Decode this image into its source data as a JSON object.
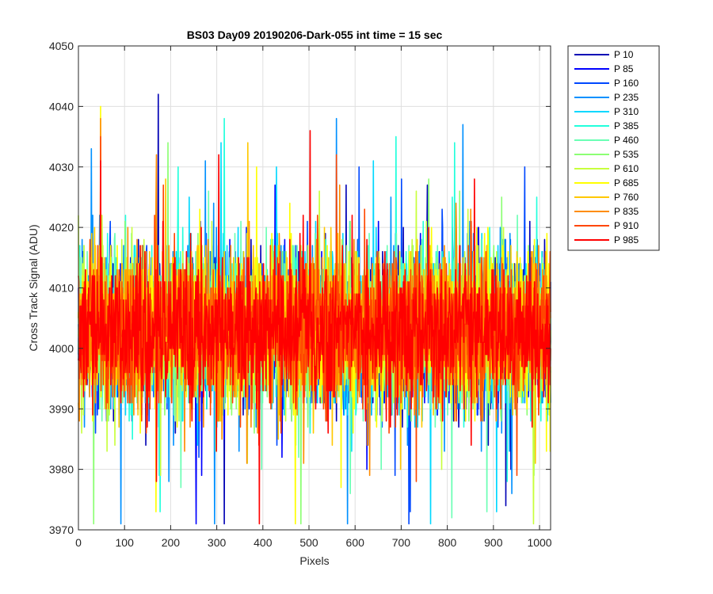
{
  "chart_data": {
    "type": "line",
    "title": "BS03 Day09 20190206-Dark-055 int time = 15 sec",
    "xlabel": "Pixels",
    "ylabel": "Cross Track Signal (ADU)",
    "xlim": [
      0,
      1024
    ],
    "ylim": [
      3970,
      4050
    ],
    "xticks": [
      "0",
      "100",
      "200",
      "300",
      "400",
      "500",
      "600",
      "700",
      "800",
      "900",
      "1000"
    ],
    "yticks": [
      "3970",
      "3980",
      "3990",
      "4000",
      "4010",
      "4020",
      "4030",
      "4040",
      "4050"
    ],
    "grid": true,
    "legend_position": "outside-right",
    "samples_per_series": 1024,
    "series": [
      {
        "name": "P 10",
        "color": "#0000b5",
        "mean": 4003,
        "spread": 6
      },
      {
        "name": "P 85",
        "color": "#0000ff",
        "mean": 4003,
        "spread": 6
      },
      {
        "name": "P 160",
        "color": "#0048ff",
        "mean": 4003,
        "spread": 6
      },
      {
        "name": "P 235",
        "color": "#0090ff",
        "mean": 4003,
        "spread": 6
      },
      {
        "name": "P 310",
        "color": "#00d8ff",
        "mean": 4003,
        "spread": 6
      },
      {
        "name": "P 385",
        "color": "#22ffdc",
        "mean": 4003,
        "spread": 6
      },
      {
        "name": "P 460",
        "color": "#6affb4",
        "mean": 4003,
        "spread": 6
      },
      {
        "name": "P 535",
        "color": "#8cff73",
        "mean": 4003,
        "spread": 6
      },
      {
        "name": "P 610",
        "color": "#c8ff3c",
        "mean": 4003,
        "spread": 6
      },
      {
        "name": "P 685",
        "color": "#ffff00",
        "mean": 4003,
        "spread": 6
      },
      {
        "name": "P 760",
        "color": "#ffc800",
        "mean": 4003,
        "spread": 6
      },
      {
        "name": "P 835",
        "color": "#ff8c00",
        "mean": 4003,
        "spread": 6
      },
      {
        "name": "P 910",
        "color": "#ff4600",
        "mean": 4003,
        "spread": 6
      },
      {
        "name": "P 985",
        "color": "#ff0000",
        "mean": 4003,
        "spread": 6
      }
    ]
  }
}
